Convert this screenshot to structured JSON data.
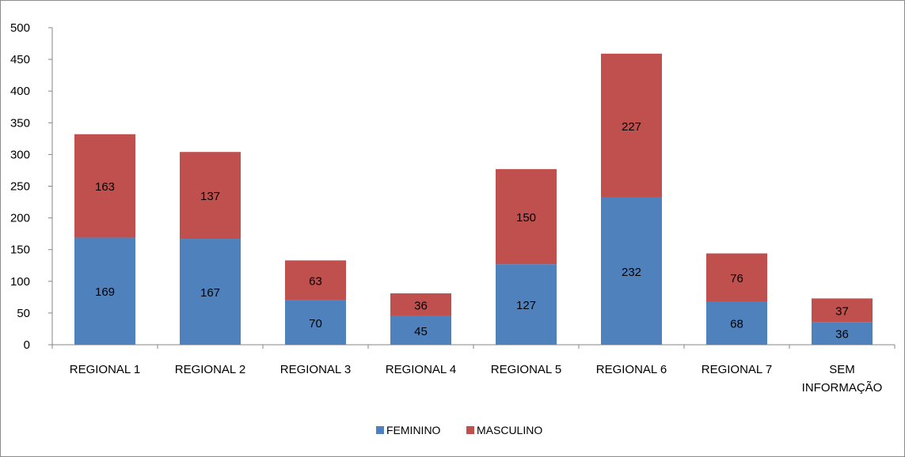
{
  "chart_data": {
    "type": "bar",
    "stacked": true,
    "title": "",
    "xlabel": "",
    "ylabel": "",
    "ylim": [
      0,
      500
    ],
    "yticks": [
      0,
      50,
      100,
      150,
      200,
      250,
      300,
      350,
      400,
      450,
      500
    ],
    "grid": false,
    "legend_position": "bottom",
    "categories": [
      [
        "REGIONAL 1"
      ],
      [
        "REGIONAL 2"
      ],
      [
        "REGIONAL 3"
      ],
      [
        "REGIONAL 4"
      ],
      [
        "REGIONAL 5"
      ],
      [
        "REGIONAL 6"
      ],
      [
        "REGIONAL 7"
      ],
      [
        "SEM",
        "INFORMAÇÃO"
      ]
    ],
    "series": [
      {
        "name": "FEMININO",
        "color": "#4f81bd",
        "values": [
          169,
          167,
          70,
          45,
          127,
          232,
          68,
          36
        ]
      },
      {
        "name": "MASCULINO",
        "color": "#c0504d",
        "values": [
          163,
          137,
          63,
          36,
          150,
          227,
          76,
          37
        ]
      }
    ]
  }
}
